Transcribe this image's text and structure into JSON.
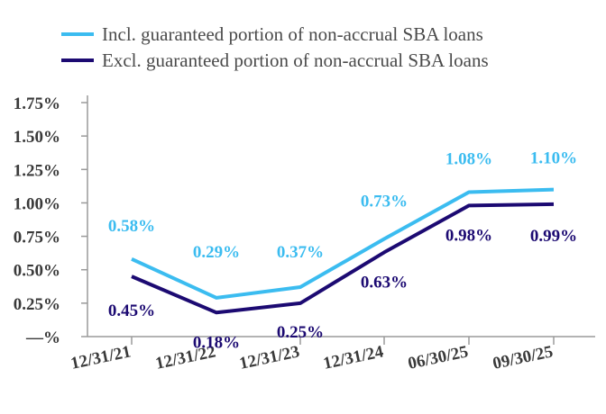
{
  "chart_data": {
    "type": "line",
    "title": "",
    "xlabel": "",
    "ylabel": "",
    "categories": [
      "12/31/21",
      "12/31/22",
      "12/31/23",
      "12/31/24",
      "06/30/25",
      "09/30/25"
    ],
    "y_ticks": [
      "—%",
      "0.25%",
      "0.50%",
      "0.75%",
      "1.00%",
      "1.25%",
      "1.50%",
      "1.75%"
    ],
    "ylim": [
      0,
      1.75
    ],
    "grid": false,
    "legend_position": "top",
    "series": [
      {
        "name": "Incl. guaranteed portion of non-accrual SBA loans",
        "color": "#3bbcf0",
        "values": [
          0.58,
          0.29,
          0.37,
          0.73,
          1.08,
          1.1
        ],
        "labels": [
          "0.58%",
          "0.29%",
          "0.37%",
          "0.73%",
          "1.08%",
          "1.10%"
        ]
      },
      {
        "name": "Excl. guaranteed portion of non-accrual SBA loans",
        "color": "#1c0a72",
        "values": [
          0.45,
          0.18,
          0.25,
          0.63,
          0.98,
          0.99
        ],
        "labels": [
          "0.45%",
          "0.18%",
          "0.25%",
          "0.63%",
          "0.98%",
          "0.99%"
        ]
      }
    ]
  }
}
